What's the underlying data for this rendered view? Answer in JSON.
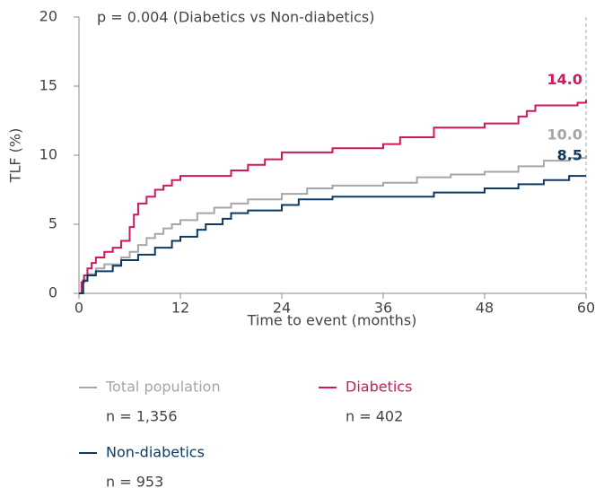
{
  "chart_data": {
    "type": "step",
    "annotation": "p = 0.004 (Diabetics vs Non-diabetics)",
    "xlabel": "Time to event (months)",
    "ylabel": "TLF (%)",
    "xlim": [
      0,
      60
    ],
    "ylim": [
      0,
      20
    ],
    "xticks": [
      0,
      12,
      24,
      36,
      48,
      60
    ],
    "yticks": [
      0,
      5,
      10,
      15,
      20
    ],
    "series": [
      {
        "name": "Total population",
        "n_label": "n = 1,356",
        "color": "#a6a6a6",
        "end_value": {
          "value": 10.0,
          "label": "10.0"
        },
        "x": [
          0,
          0.5,
          1,
          2,
          3,
          5,
          6,
          7,
          8,
          9,
          10,
          11,
          12,
          14,
          16,
          18,
          20,
          24,
          27,
          30,
          36,
          40,
          44,
          48,
          52,
          55,
          58,
          60
        ],
        "values": [
          0,
          1,
          1.4,
          1.8,
          2.1,
          2.6,
          3.0,
          3.5,
          4.0,
          4.3,
          4.7,
          5.0,
          5.3,
          5.8,
          6.2,
          6.5,
          6.8,
          7.2,
          7.6,
          7.8,
          8.0,
          8.4,
          8.6,
          8.8,
          9.2,
          9.6,
          9.8,
          10.0
        ]
      },
      {
        "name": "Diabetics",
        "n_label": "n = 402",
        "color": "#d0175f",
        "end_value": {
          "value": 14.0,
          "label": "14.0"
        },
        "x": [
          0,
          0.3,
          0.6,
          1,
          1.5,
          2,
          3,
          4,
          5,
          6,
          6.5,
          7,
          8,
          9,
          10,
          11,
          12,
          18,
          20,
          22,
          24,
          30,
          36,
          38,
          42,
          48,
          52,
          53,
          54,
          59,
          60
        ],
        "values": [
          0,
          0.8,
          1.3,
          1.8,
          2.2,
          2.6,
          3.0,
          3.3,
          3.8,
          4.8,
          5.7,
          6.5,
          7.0,
          7.5,
          7.8,
          8.2,
          8.5,
          8.9,
          9.3,
          9.7,
          10.2,
          10.5,
          10.8,
          11.3,
          12.0,
          12.3,
          12.8,
          13.2,
          13.6,
          13.8,
          14.0
        ]
      },
      {
        "name": "Non-diabetics",
        "n_label": "n = 953",
        "color": "#0d3a63",
        "end_value": {
          "value": 8.5,
          "label": "8.5"
        },
        "x": [
          0,
          0.5,
          1,
          2,
          4,
          5,
          7,
          9,
          11,
          12,
          14,
          15,
          17,
          18,
          20,
          24,
          26,
          30,
          36,
          42,
          48,
          52,
          55,
          58,
          60
        ],
        "values": [
          0,
          0.9,
          1.3,
          1.6,
          2.0,
          2.4,
          2.8,
          3.3,
          3.8,
          4.1,
          4.6,
          5.0,
          5.4,
          5.8,
          6.0,
          6.4,
          6.8,
          7.0,
          7.0,
          7.3,
          7.6,
          7.9,
          8.2,
          8.5,
          8.5
        ]
      }
    ]
  }
}
